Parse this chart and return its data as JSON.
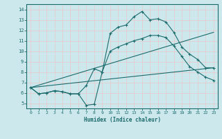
{
  "xlabel": "Humidex (Indice chaleur)",
  "bg_color": "#cde8ed",
  "grid_color": "#e8c8c8",
  "line_color": "#1a6b6b",
  "xlim": [
    -0.5,
    23.5
  ],
  "ylim": [
    4.5,
    14.5
  ],
  "xticks": [
    0,
    1,
    2,
    3,
    4,
    5,
    6,
    7,
    8,
    9,
    10,
    11,
    12,
    13,
    14,
    15,
    16,
    17,
    18,
    19,
    20,
    21,
    22,
    23
  ],
  "yticks": [
    5,
    6,
    7,
    8,
    9,
    10,
    11,
    12,
    13,
    14
  ],
  "lines": [
    {
      "x": [
        0,
        1,
        2,
        3,
        4,
        5,
        6,
        7,
        8,
        9,
        10,
        11,
        12,
        13,
        14,
        15,
        16,
        17,
        18,
        19,
        20,
        21,
        22,
        23
      ],
      "y": [
        6.5,
        5.9,
        6.0,
        6.2,
        6.1,
        5.9,
        5.9,
        4.8,
        4.9,
        8.0,
        11.7,
        12.3,
        12.5,
        13.3,
        13.8,
        13.0,
        13.1,
        12.8,
        11.8,
        10.4,
        9.7,
        9.2,
        8.4,
        8.4
      ],
      "marker": true
    },
    {
      "x": [
        0,
        1,
        2,
        3,
        4,
        5,
        6,
        7,
        8,
        9,
        10,
        11,
        12,
        13,
        14,
        15,
        16,
        17,
        18,
        19,
        20,
        21,
        22,
        23
      ],
      "y": [
        6.5,
        5.9,
        6.0,
        6.2,
        6.1,
        5.9,
        5.9,
        6.7,
        8.3,
        8.0,
        10.0,
        10.4,
        10.7,
        11.0,
        11.2,
        11.5,
        11.5,
        11.3,
        10.5,
        9.5,
        8.5,
        8.0,
        7.5,
        7.2
      ],
      "marker": true
    },
    {
      "x": [
        0,
        23
      ],
      "y": [
        6.5,
        11.8
      ],
      "marker": false
    },
    {
      "x": [
        0,
        23
      ],
      "y": [
        6.5,
        8.4
      ],
      "marker": false
    }
  ]
}
